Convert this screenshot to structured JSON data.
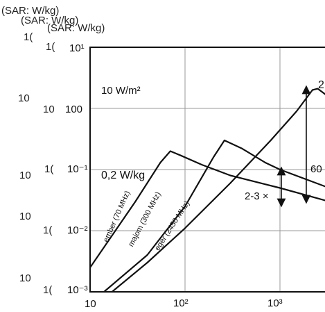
{
  "ghost_labels": {
    "unit_1": "(SAR: W/kg)",
    "unit_2": "(SAR: W/kg)",
    "unit_3": "(SAR: W/kg)",
    "ticks_far": [
      "1(",
      "10",
      "10",
      "10",
      "10"
    ],
    "ticks_near": [
      "1(",
      "10",
      "1(",
      "1(",
      "1("
    ]
  },
  "chart_data": {
    "type": "line",
    "log_x": true,
    "log_y": true,
    "xlim": [
      10,
      5000
    ],
    "ylim": [
      0.001,
      10
    ],
    "grid": true,
    "ylabel": "(SAR: W/kg)",
    "xlabel": "",
    "x_tick_labels": [
      "10",
      "10²",
      "10³"
    ],
    "y_tick_labels": [
      "10¹",
      "100",
      "10⁻¹",
      "10⁻²",
      "10⁻³"
    ],
    "annotations": {
      "power_density": "10 W/m²",
      "sar_level": "0,2 W/kg",
      "ratio_small": "2-3 ×",
      "ratio_large_partial": "60",
      "peak_label_partial": "2"
    },
    "series": [
      {
        "name": "ember (70 MHz)",
        "x": [
          10,
          30,
          55,
          70,
          90,
          150,
          300,
          1000,
          5000
        ],
        "y": [
          0.0025,
          0.03,
          0.13,
          0.2,
          0.17,
          0.12,
          0.08,
          0.05,
          0.03
        ]
      },
      {
        "name": "majom (300 MHz)",
        "x": [
          14,
          40,
          100,
          200,
          260,
          400,
          700,
          1000,
          5000
        ],
        "y": [
          0.001,
          0.004,
          0.025,
          0.16,
          0.3,
          0.22,
          0.13,
          0.1,
          0.05
        ]
      },
      {
        "name": "egér (2450 MHz)",
        "x": [
          17,
          40,
          100,
          300,
          800,
          1500,
          2200,
          2500,
          3000,
          5000
        ],
        "y": [
          0.001,
          0.003,
          0.011,
          0.06,
          0.3,
          0.9,
          2.0,
          2.1,
          1.7,
          1.3
        ]
      }
    ]
  }
}
